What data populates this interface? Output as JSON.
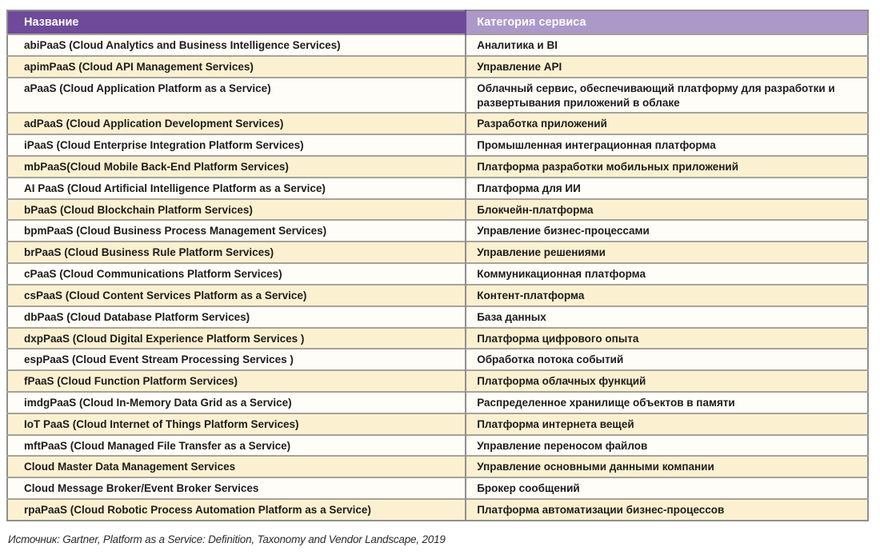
{
  "table": {
    "columns": [
      {
        "key": "name",
        "label": "Название"
      },
      {
        "key": "category",
        "label": "Категория сервиса"
      }
    ],
    "rows": [
      {
        "name": "abiPaaS (Cloud Analytics and Business Intelligence Services)",
        "category": "Аналитика и BI"
      },
      {
        "name": "apimPaaS (Cloud API Management Services)",
        "category": "Управление API"
      },
      {
        "name": "aPaaS (Cloud Application Platform as a Service)",
        "category": "Облачный сервис, обеспечивающий платформу для разработки и развертывания приложений в облаке"
      },
      {
        "name": "adPaaS (Cloud Application Development Services)",
        "category": "Разработка приложений"
      },
      {
        "name": "iPaaS (Cloud Enterprise Integration Platform Services)",
        "category": "Промышленная интеграционная платформа"
      },
      {
        "name": "mbPaaS(Cloud Mobile Back-End Platform Services)",
        "category": "Платформа разработки мобильных приложений"
      },
      {
        "name": "AI PaaS (Cloud Artificial Intelligence Platform as a Service)",
        "category": "Платформа для ИИ"
      },
      {
        "name": "bPaaS (Cloud Blockchain Platform Services)",
        "category": "Блокчейн-платформа"
      },
      {
        "name": "bpmPaaS (Cloud Business Process Management Services)",
        "category": "Управление бизнес-процессами"
      },
      {
        "name": "brPaaS (Cloud Business Rule Platform Services)",
        "category": "Управление решениями"
      },
      {
        "name": "cPaaS (Cloud Communications Platform Services)",
        "category": "Коммуникационная платформа"
      },
      {
        "name": "csPaaS (Cloud Content Services Platform as a Service)",
        "category": "Контент-платформа"
      },
      {
        "name": "dbPaaS (Cloud Database Platform Services)",
        "category": "База данных"
      },
      {
        "name": "dxpPaaS (Cloud Digital Experience Platform Services )",
        "category": "Платформа цифрового опыта"
      },
      {
        "name": "espPaaS (Cloud Event Stream Processing Services )",
        "category": "Обработка потока событий"
      },
      {
        "name": "fPaaS (Cloud Function Platform Services)",
        "category": "Платформа облачных функций"
      },
      {
        "name": "imdgPaaS (Cloud In-Memory Data Grid as a Service)",
        "category": "Распределенное хранилище объектов в памяти"
      },
      {
        "name": "IoT PaaS (Cloud Internet of Things Platform Services)",
        "category": "Платформа интернета вещей"
      },
      {
        "name": "mftPaaS (Cloud Managed File Transfer as a Service)",
        "category": "Управление переносом файлов"
      },
      {
        "name": "Cloud Master Data Management Services",
        "category": "Управление основными данными компании"
      },
      {
        "name": "Cloud Message Broker/Event Broker Services",
        "category": "Брокер сообщений"
      },
      {
        "name": "rpaPaaS (Cloud Robotic Process Automation Platform as a Service)",
        "category": "Платформа автоматизации бизнес-процессов"
      }
    ]
  },
  "footer": {
    "source": "Источник: Gartner, Platform as a Service: Definition, Taxonomy and Vendor Landscape, 2019"
  },
  "colors": {
    "header_dark_purple": "#6f4a9b",
    "header_light_purple": "#ac98c9",
    "row_white": "#fffdf7",
    "row_cream": "#fbf1d1",
    "border_gray": "#8f8f8f",
    "rule_gray": "#a6a29a",
    "text_dark": "#1c1c1c"
  }
}
